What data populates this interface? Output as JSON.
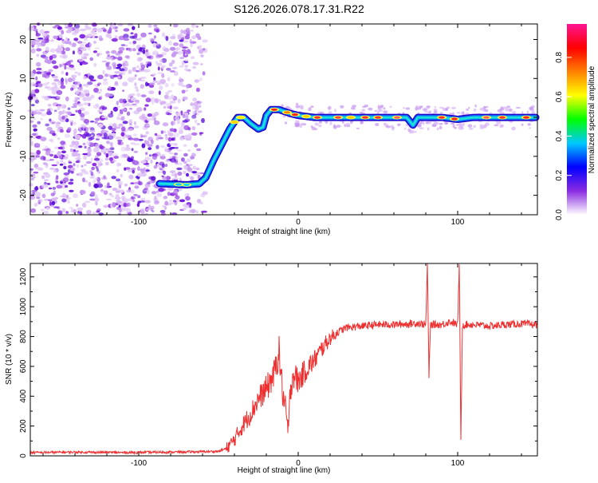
{
  "title": "S126.2026.078.17.31.R22",
  "colors": {
    "snr_line": "#ee3030",
    "frame": "#000000"
  },
  "chart_data": [
    {
      "type": "heatmap",
      "name": "spectrogram",
      "xlabel": "Height of straight line (km)",
      "ylabel": "Frequency (Hz)",
      "xlim": [
        -168,
        150
      ],
      "ylim": [
        -25,
        24
      ],
      "x_ticks": [
        -100,
        0,
        100
      ],
      "y_ticks": [
        -20,
        -10,
        0,
        10,
        20
      ],
      "colorbar": {
        "label": "Normalized spectral amplitude",
        "range": [
          0,
          0.97
        ],
        "ticks": [
          0.0,
          0.2,
          0.4,
          0.6,
          0.8
        ],
        "tick_labels": [
          "0.0",
          "0.2",
          "0.4",
          "0.6",
          "0.8"
        ],
        "colormap": [
          "#ffffff",
          "#8a2be2",
          "#0000ff",
          "#00c8ff",
          "#00ff00",
          "#ffff00",
          "#ff8000",
          "#ff0000",
          "#ff1493"
        ]
      },
      "noise_region_x": [
        -168,
        -58
      ],
      "signal_ridge": {
        "x": [
          -87,
          -70,
          -62,
          -58,
          -53,
          -48,
          -43,
          -38,
          -34,
          -30,
          -25,
          -22,
          -20,
          -17,
          -12,
          -5,
          0,
          10,
          30,
          50,
          60,
          68,
          72,
          75,
          90,
          100,
          110,
          130,
          149
        ],
        "freq": [
          -17,
          -17.3,
          -17,
          -15.5,
          -11,
          -7,
          -3,
          0,
          0,
          -1.5,
          -3,
          -2.5,
          0.5,
          2,
          2,
          1,
          0.5,
          0,
          0,
          0,
          0,
          0,
          -2,
          0,
          0,
          -0.5,
          0,
          0,
          0
        ]
      }
    },
    {
      "type": "line",
      "name": "snr",
      "xlabel": "Height of straight line (km)",
      "ylabel": "SNR (10 * v/v)",
      "xlim": [
        -168,
        150
      ],
      "ylim": [
        0,
        1290
      ],
      "x_ticks": [
        -100,
        0,
        100
      ],
      "y_ticks": [
        0,
        200,
        400,
        600,
        800,
        1000,
        1200
      ],
      "series": [
        {
          "name": "SNR",
          "x": [
            -168,
            -140,
            -110,
            -80,
            -60,
            -50,
            -45,
            -40,
            -35,
            -30,
            -25,
            -20,
            -15,
            -12,
            -10,
            -8,
            -6,
            -5,
            -3,
            0,
            5,
            10,
            15,
            20,
            25,
            30,
            40,
            50,
            60,
            70,
            75,
            80,
            81,
            82,
            83,
            90,
            95,
            100,
            101,
            102,
            103,
            110,
            120,
            130,
            140,
            150
          ],
          "y": [
            22,
            25,
            22,
            25,
            28,
            30,
            50,
            110,
            200,
            280,
            380,
            450,
            550,
            700,
            450,
            300,
            150,
            450,
            550,
            500,
            580,
            640,
            720,
            790,
            830,
            860,
            870,
            880,
            880,
            885,
            890,
            880,
            1290,
            540,
            880,
            880,
            900,
            880,
            1290,
            100,
            880,
            880,
            870,
            880,
            885,
            880
          ]
        }
      ]
    }
  ]
}
